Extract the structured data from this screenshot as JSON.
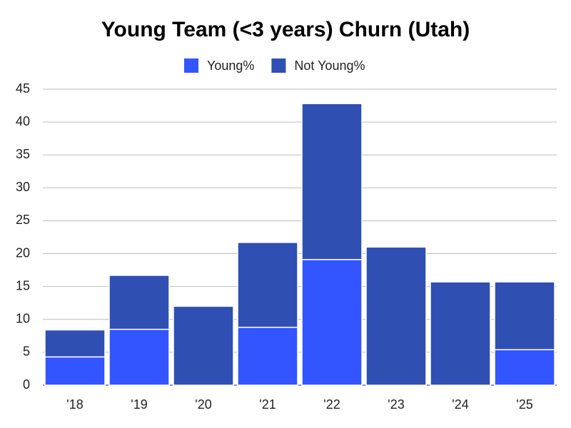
{
  "chart_data": {
    "type": "stacked_bar",
    "title": "Young Team (<3 years) Churn (Utah)",
    "categories": [
      "'18",
      "'19",
      "'20",
      "'21",
      "'22",
      "'23",
      "'24",
      "'25"
    ],
    "series": [
      {
        "name": "Young%",
        "color": "#3355ff",
        "values": [
          4.3,
          8.5,
          0,
          8.8,
          19.1,
          0,
          0,
          5.4
        ]
      },
      {
        "name": "Not Young%",
        "color": "#2f4fb3",
        "values": [
          4.1,
          8.2,
          12.0,
          12.9,
          23.7,
          21.0,
          15.7,
          10.3
        ]
      }
    ],
    "ylim": [
      0,
      45
    ],
    "yticks": [
      0,
      5,
      10,
      15,
      20,
      25,
      30,
      35,
      40,
      45
    ],
    "grid": true,
    "legend": "top"
  }
}
